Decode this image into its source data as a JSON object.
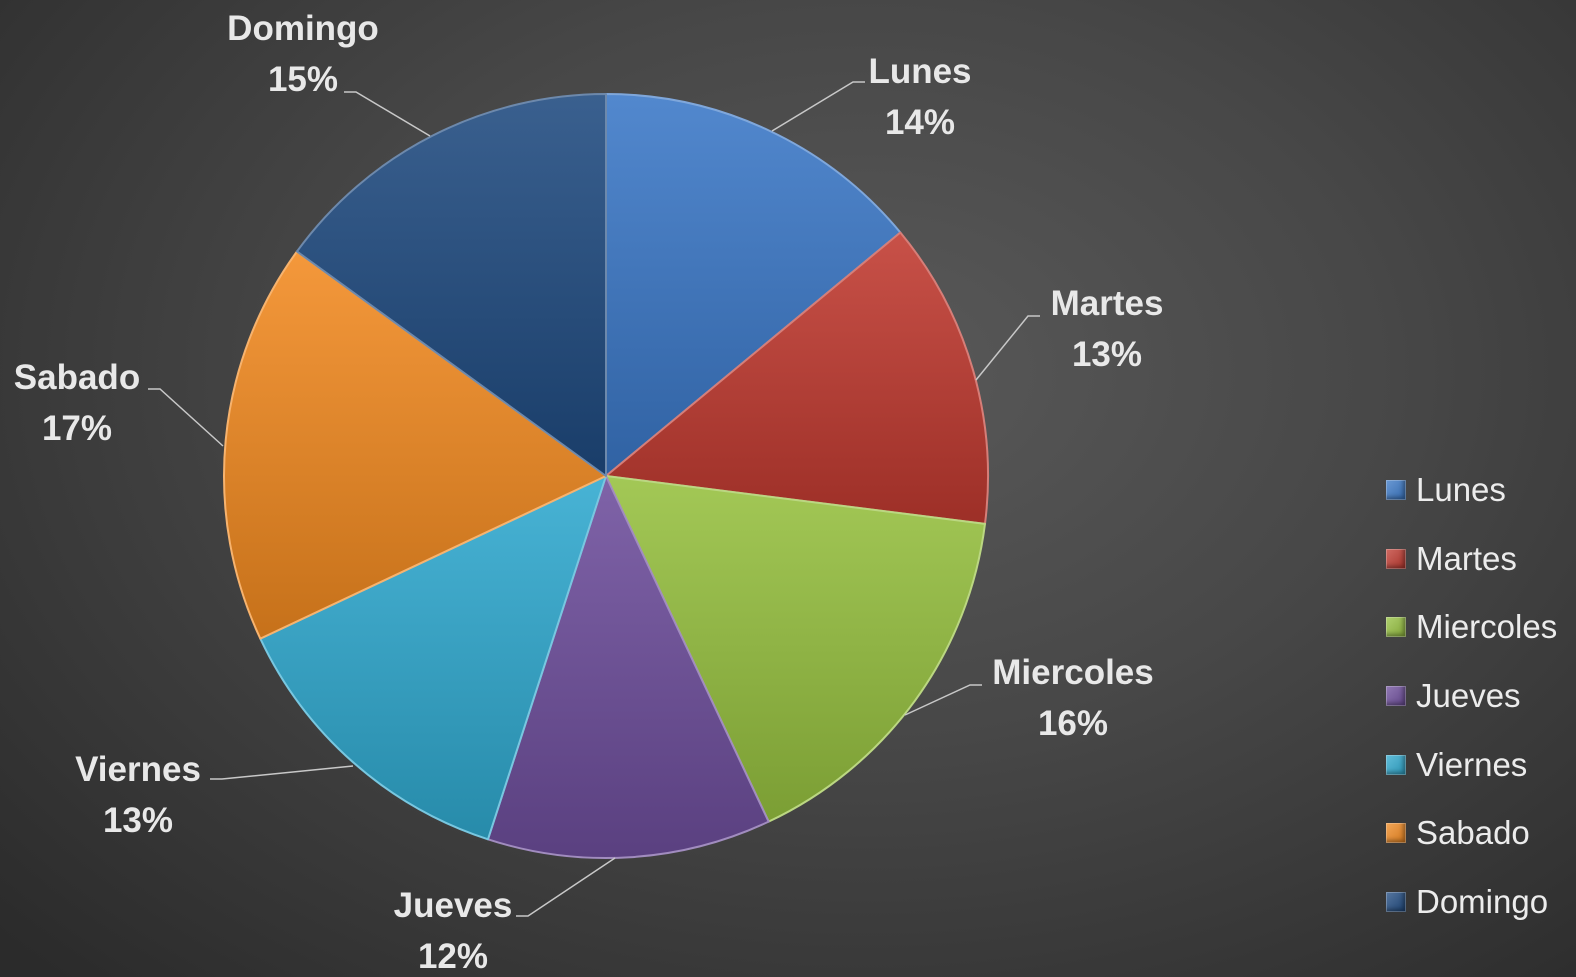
{
  "chart_data": {
    "type": "pie",
    "title": "",
    "start_angle_deg": 0,
    "direction": "clockwise",
    "slices": [
      {
        "label": "Lunes",
        "value": 14,
        "pct_label": "14%",
        "color": "#3a78c7"
      },
      {
        "label": "Martes",
        "value": 13,
        "pct_label": "13%",
        "color": "#c0392f"
      },
      {
        "label": "Miercoles",
        "value": 16,
        "pct_label": "16%",
        "color": "#96c13f"
      },
      {
        "label": "Jueves",
        "value": 12,
        "pct_label": "12%",
        "color": "#6e4e9c"
      },
      {
        "label": "Viernes",
        "value": 13,
        "pct_label": "13%",
        "color": "#2fa9cf"
      },
      {
        "label": "Sabado",
        "value": 17,
        "pct_label": "17%",
        "color": "#f28a20"
      },
      {
        "label": "Domingo",
        "value": 15,
        "pct_label": "15%",
        "color": "#1f4a80"
      }
    ],
    "legend_position": "right",
    "data_label_color": "#e8e8e8",
    "leader_line_color": "#c8c8c8"
  }
}
